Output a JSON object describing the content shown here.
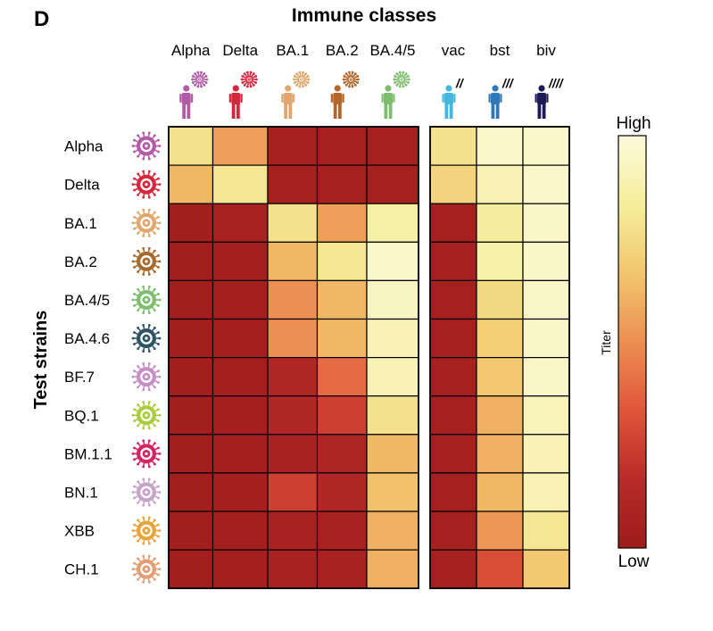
{
  "panel_label": "D",
  "chart_data": {
    "type": "heatmap",
    "title": "Immune classes",
    "ylabel": "Test strains",
    "colorbar": {
      "label": "Titer",
      "high_label": "High",
      "low_label": "Low"
    },
    "columns": [
      "Alpha",
      "Delta",
      "BA.1",
      "BA.2",
      "BA.4/5",
      "vac",
      "bst",
      "biv"
    ],
    "column_groups": [
      [
        "Alpha",
        "Delta",
        "BA.1",
        "BA.2",
        "BA.4/5"
      ],
      [
        "vac",
        "bst",
        "biv"
      ]
    ],
    "column_icon_colors": [
      "#b35aa6",
      "#d9263d",
      "#e0a66b",
      "#b5652a",
      "#7dbe6e",
      "#45b6dd",
      "#2f78b8",
      "#1d1a55"
    ],
    "column_dose_marks": [
      "",
      "",
      "",
      "",
      "",
      "//",
      "///",
      "////"
    ],
    "rows": [
      "Alpha",
      "Delta",
      "BA.1",
      "BA.2",
      "BA.4/5",
      "BA.4.6",
      "BF.7",
      "BQ.1",
      "BM.1.1",
      "BN.1",
      "XBB",
      "CH.1"
    ],
    "row_icon_colors": [
      "#b35aa6",
      "#d9263d",
      "#e0a66b",
      "#a56a2c",
      "#7dbe6e",
      "#2f5565",
      "#c68ec4",
      "#a9cc3a",
      "#d4245d",
      "#c7a3cb",
      "#e8a33a",
      "#e39e74"
    ],
    "values_note": "relative titer, 0 = Low, 1 = High",
    "values": [
      [
        0.78,
        0.55,
        0.05,
        0.05,
        0.05,
        0.78,
        0.96,
        0.96
      ],
      [
        0.62,
        0.8,
        0.05,
        0.05,
        0.05,
        0.72,
        0.9,
        0.96
      ],
      [
        0.03,
        0.07,
        0.78,
        0.55,
        0.86,
        0.05,
        0.84,
        0.95
      ],
      [
        0.03,
        0.04,
        0.62,
        0.8,
        0.96,
        0.05,
        0.87,
        0.95
      ],
      [
        0.03,
        0.04,
        0.5,
        0.62,
        0.93,
        0.05,
        0.74,
        0.95
      ],
      [
        0.03,
        0.04,
        0.5,
        0.62,
        0.9,
        0.05,
        0.7,
        0.95
      ],
      [
        0.03,
        0.04,
        0.12,
        0.4,
        0.9,
        0.05,
        0.67,
        0.95
      ],
      [
        0.03,
        0.04,
        0.12,
        0.25,
        0.78,
        0.05,
        0.6,
        0.91
      ],
      [
        0.03,
        0.04,
        0.08,
        0.1,
        0.62,
        0.05,
        0.6,
        0.9
      ],
      [
        0.03,
        0.04,
        0.25,
        0.12,
        0.65,
        0.05,
        0.62,
        0.9
      ],
      [
        0.03,
        0.04,
        0.07,
        0.07,
        0.6,
        0.05,
        0.52,
        0.8
      ],
      [
        0.03,
        0.04,
        0.07,
        0.07,
        0.6,
        0.05,
        0.3,
        0.68
      ]
    ],
    "colorscale": [
      "#9c1c1c",
      "#b82b28",
      "#e0553a",
      "#ec8f52",
      "#f2c66e",
      "#f5ee9c",
      "#fcfadb"
    ]
  }
}
